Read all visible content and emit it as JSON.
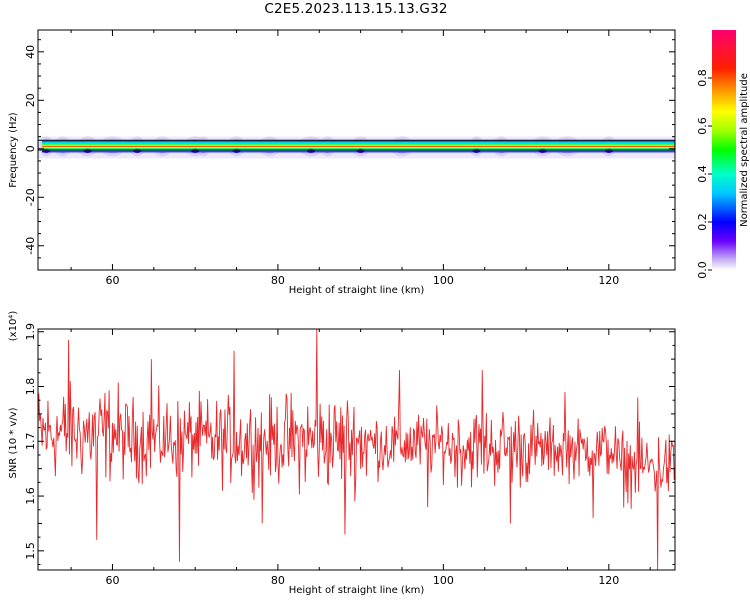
{
  "title": "C2E5.2023.113.15.13.G32",
  "chart_data": [
    {
      "type": "heatmap",
      "xlabel": "Height of straight line (km)",
      "ylabel": "Frequency (Hz)",
      "xlim": [
        51,
        128
      ],
      "ylim": [
        -50,
        49
      ],
      "xticks": [
        60,
        80,
        100,
        120
      ],
      "yticks": [
        -40,
        -20,
        0,
        20,
        40
      ],
      "colorbar": {
        "label": "Normalized spectral amplitude",
        "range": [
          0.0,
          1.0
        ],
        "ticks": [
          "0.0",
          "0.2",
          "0.4",
          "0.6",
          "0.8"
        ],
        "tick_values": [
          0.0,
          0.2,
          0.4,
          0.6,
          0.8
        ]
      },
      "band": {
        "center_frequency_hz": 1.0,
        "box_frequency_range_hz": [
          -0.5,
          3.5
        ],
        "halo_frequency_range_hz": [
          -4,
          5
        ]
      },
      "halo_blobs_km": [
        52,
        54,
        57,
        60,
        63,
        66,
        70,
        71,
        75,
        79,
        84,
        86,
        90,
        95,
        104,
        107,
        112,
        115,
        120
      ],
      "grid": false
    },
    {
      "type": "line",
      "xlabel": "Height of straight line (km)",
      "ylabel": "SNR (10 * v/v)",
      "ymultiplier": "(x10⁴)",
      "xlim": [
        51,
        128
      ],
      "ylim": [
        1.465,
        1.905
      ],
      "xticks": [
        60,
        80,
        100,
        120
      ],
      "yticks": [
        1.5,
        1.6,
        1.7,
        1.8,
        1.9
      ],
      "ytick_labels": [
        "1.5",
        "1.6",
        "1.7",
        "1.8",
        "1.9"
      ],
      "line_color": "#e8282a",
      "x_step_km": 0.1,
      "series": [
        {
          "segment_summary": [
            {
              "x": [
                51,
                61
              ],
              "mean": 1.715,
              "min": 1.52,
              "max": 1.885
            },
            {
              "x": [
                61,
                71
              ],
              "mean": 1.705,
              "min": 1.48,
              "max": 1.85
            },
            {
              "x": [
                71,
                81
              ],
              "mean": 1.7,
              "min": 1.55,
              "max": 1.865
            },
            {
              "x": [
                81,
                91
              ],
              "mean": 1.7,
              "min": 1.53,
              "max": 1.905
            },
            {
              "x": [
                91,
                101
              ],
              "mean": 1.695,
              "min": 1.58,
              "max": 1.83
            },
            {
              "x": [
                101,
                111
              ],
              "mean": 1.69,
              "min": 1.55,
              "max": 1.83
            },
            {
              "x": [
                111,
                121
              ],
              "mean": 1.685,
              "min": 1.56,
              "max": 1.79
            },
            {
              "x": [
                121,
                128
              ],
              "mean": 1.655,
              "min": 1.465,
              "max": 1.78
            }
          ]
        }
      ],
      "grid": false
    }
  ]
}
